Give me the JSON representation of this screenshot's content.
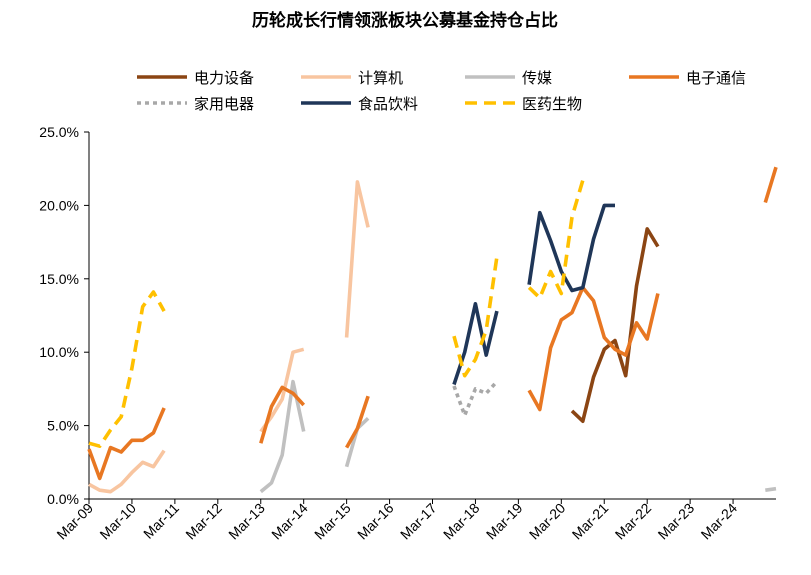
{
  "chart_data": {
    "type": "line",
    "title": "历轮成长行情领涨板块公募基金持仓占比",
    "xlabel": "",
    "ylabel": "",
    "x_ticks": [
      "Mar-09",
      "Mar-10",
      "Mar-11",
      "Mar-12",
      "Mar-13",
      "Mar-14",
      "Mar-15",
      "Mar-16",
      "Mar-17",
      "Mar-18",
      "Mar-19",
      "Mar-20",
      "Mar-21",
      "Mar-22",
      "Mar-23",
      "Mar-24"
    ],
    "y_ticks": [
      "0.0%",
      "5.0%",
      "10.0%",
      "15.0%",
      "20.0%",
      "25.0%"
    ],
    "ylim": [
      0,
      0.25
    ],
    "x_range_quarters": [
      0,
      64
    ],
    "grid": false,
    "legend_position": "top",
    "series": [
      {
        "name": "电力设备",
        "color": "#8B4513",
        "dash": "solid",
        "segments": [
          [
            [
              45,
              0.06
            ],
            [
              46,
              0.053
            ],
            [
              47,
              0.083
            ],
            [
              48,
              0.102
            ],
            [
              49,
              0.108
            ],
            [
              50,
              0.084
            ],
            [
              51,
              0.145
            ],
            [
              52,
              0.184
            ],
            [
              53,
              0.172
            ]
          ]
        ]
      },
      {
        "name": "计算机",
        "color": "#F8C5A0",
        "dash": "solid",
        "segments": [
          [
            [
              0,
              0.01
            ],
            [
              1,
              0.006
            ],
            [
              2,
              0.005
            ],
            [
              3,
              0.01
            ],
            [
              4,
              0.018
            ],
            [
              5,
              0.025
            ],
            [
              6,
              0.022
            ],
            [
              7,
              0.033
            ]
          ],
          [
            [
              16,
              0.046
            ],
            [
              17,
              0.056
            ],
            [
              18,
              0.068
            ],
            [
              19,
              0.1
            ],
            [
              20,
              0.102
            ]
          ],
          [
            [
              24,
              0.11
            ],
            [
              25,
              0.216
            ],
            [
              26,
              0.185
            ]
          ]
        ]
      },
      {
        "name": "传媒",
        "color": "#C0C0C0",
        "dash": "solid",
        "segments": [
          [
            [
              16,
              0.005
            ],
            [
              17,
              0.011
            ],
            [
              18,
              0.03
            ],
            [
              19,
              0.08
            ],
            [
              20,
              0.046
            ]
          ],
          [
            [
              24,
              0.022
            ],
            [
              25,
              0.048
            ],
            [
              26,
              0.055
            ]
          ],
          [
            [
              63,
              0.006
            ],
            [
              64,
              0.007
            ]
          ]
        ]
      },
      {
        "name": "电子通信",
        "color": "#E87722",
        "dash": "solid",
        "segments": [
          [
            [
              0,
              0.034
            ],
            [
              1,
              0.014
            ],
            [
              2,
              0.035
            ],
            [
              3,
              0.032
            ],
            [
              4,
              0.04
            ],
            [
              5,
              0.04
            ],
            [
              6,
              0.045
            ],
            [
              7,
              0.062
            ]
          ],
          [
            [
              16,
              0.038
            ],
            [
              17,
              0.063
            ],
            [
              18,
              0.076
            ],
            [
              19,
              0.072
            ],
            [
              20,
              0.064
            ]
          ],
          [
            [
              24,
              0.035
            ],
            [
              25,
              0.048
            ],
            [
              26,
              0.07
            ]
          ],
          [
            [
              41,
              0.074
            ],
            [
              42,
              0.061
            ],
            [
              43,
              0.103
            ],
            [
              44,
              0.122
            ],
            [
              45,
              0.127
            ],
            [
              46,
              0.144
            ],
            [
              47,
              0.135
            ],
            [
              48,
              0.11
            ],
            [
              49,
              0.102
            ],
            [
              50,
              0.098
            ],
            [
              51,
              0.12
            ],
            [
              52,
              0.109
            ],
            [
              53,
              0.14
            ]
          ],
          [
            [
              63,
              0.202
            ],
            [
              64,
              0.226
            ]
          ]
        ]
      },
      {
        "name": "家用电器",
        "color": "#A8A8A8",
        "dash": "dot",
        "segments": [
          [
            [
              34,
              0.077
            ],
            [
              35,
              0.057
            ],
            [
              36,
              0.075
            ],
            [
              37,
              0.072
            ],
            [
              38,
              0.08
            ]
          ]
        ]
      },
      {
        "name": "食品饮料",
        "color": "#1F3658",
        "dash": "solid",
        "segments": [
          [
            [
              34,
              0.078
            ],
            [
              35,
              0.1
            ],
            [
              36,
              0.133
            ],
            [
              37,
              0.098
            ],
            [
              38,
              0.128
            ]
          ],
          [
            [
              41,
              0.146
            ],
            [
              42,
              0.195
            ],
            [
              43,
              0.176
            ],
            [
              44,
              0.155
            ],
            [
              45,
              0.142
            ],
            [
              46,
              0.144
            ],
            [
              47,
              0.177
            ],
            [
              48,
              0.2
            ],
            [
              49,
              0.2
            ]
          ]
        ]
      },
      {
        "name": "医药生物",
        "color": "#FFC000",
        "dash": "dash",
        "segments": [
          [
            [
              0,
              0.038
            ],
            [
              1,
              0.036
            ],
            [
              2,
              0.047
            ],
            [
              3,
              0.056
            ],
            [
              4,
              0.089
            ],
            [
              5,
              0.131
            ],
            [
              6,
              0.141
            ],
            [
              7,
              0.128
            ]
          ],
          [
            [
              34,
              0.111
            ],
            [
              35,
              0.084
            ],
            [
              36,
              0.095
            ],
            [
              37,
              0.115
            ],
            [
              38,
              0.165
            ]
          ],
          [
            [
              41,
              0.144
            ],
            [
              42,
              0.137
            ],
            [
              43,
              0.155
            ],
            [
              44,
              0.14
            ],
            [
              45,
              0.192
            ],
            [
              46,
              0.217
            ]
          ]
        ]
      }
    ]
  }
}
